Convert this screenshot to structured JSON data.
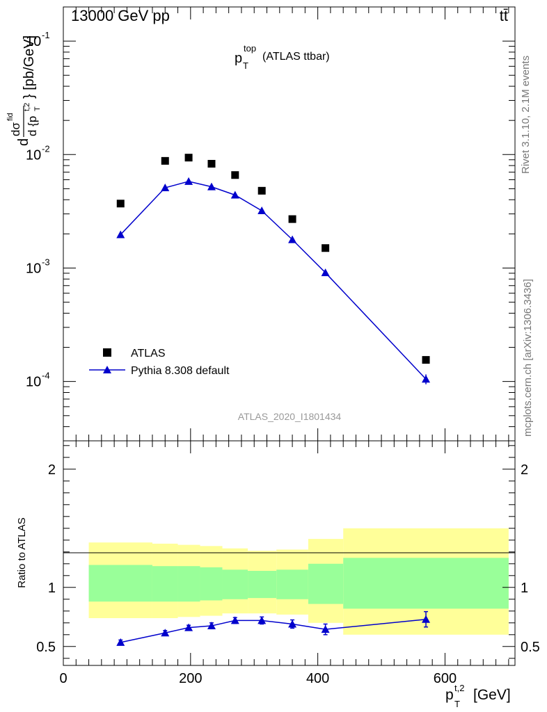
{
  "header": {
    "left": "13000 GeV pp",
    "right": "tt̄"
  },
  "side_text": {
    "rivet": "Rivet 3.1.10,  2.1M events",
    "mcplots": "mcplots.cern.ch [arXiv:1306.3436]"
  },
  "chart_data": [
    {
      "type": "scatter",
      "title": "p_T^top (ATLAS ttbar)",
      "analysis_id": "ATLAS_2020_I1801434",
      "ylabel": "d σ^fid / d {p_T^t,2} [pb/GeV]",
      "yscale": "log",
      "ylim": [
        3e-05,
        0.2
      ],
      "xlim": [
        0,
        710
      ],
      "legend_position": "lower-left",
      "y_ticks": [
        {
          "value": 0.1,
          "label": "10^-1"
        },
        {
          "value": 0.01,
          "label": "10^-2"
        },
        {
          "value": 0.001,
          "label": "10^-3"
        },
        {
          "value": 0.0001,
          "label": "10^-4"
        }
      ],
      "series": [
        {
          "name": "ATLAS",
          "marker": "square",
          "color": "#000000",
          "x": [
            90,
            160,
            197,
            233,
            270,
            312,
            360,
            412,
            570
          ],
          "y": [
            0.0037,
            0.0088,
            0.0094,
            0.0083,
            0.0066,
            0.0048,
            0.0027,
            0.0015,
            0.000155
          ]
        },
        {
          "name": "Pythia 8.308 default",
          "marker": "triangle",
          "color": "#0000cc",
          "x": [
            90,
            160,
            197,
            233,
            270,
            312,
            360,
            412,
            570
          ],
          "y": [
            0.00197,
            0.0051,
            0.0058,
            0.0052,
            0.0044,
            0.0032,
            0.00178,
            0.00091,
            0.000105
          ]
        }
      ]
    },
    {
      "type": "line",
      "ylabel": "Ratio to ATLAS",
      "xlabel": "p_T^t,2 [GeV]",
      "xlim": [
        0,
        710
      ],
      "ylim": [
        0.34,
        2.24
      ],
      "x_ticks": [
        0,
        200,
        400,
        600
      ],
      "y_ticks": [
        0.5,
        1,
        2
      ],
      "bands": [
        {
          "x0": 40,
          "x1": 140,
          "y_lo": 0.74,
          "y_hi": 1.38,
          "inner_lo": 0.88,
          "inner_hi": 1.19
        },
        {
          "x0": 140,
          "x1": 180,
          "y_lo": 0.74,
          "y_hi": 1.37,
          "inner_lo": 0.88,
          "inner_hi": 1.18
        },
        {
          "x0": 180,
          "x1": 215,
          "y_lo": 0.75,
          "y_hi": 1.36,
          "inner_lo": 0.88,
          "inner_hi": 1.18
        },
        {
          "x0": 215,
          "x1": 250,
          "y_lo": 0.76,
          "y_hi": 1.35,
          "inner_lo": 0.89,
          "inner_hi": 1.17
        },
        {
          "x0": 250,
          "x1": 290,
          "y_lo": 0.78,
          "y_hi": 1.33,
          "inner_lo": 0.9,
          "inner_hi": 1.15
        },
        {
          "x0": 290,
          "x1": 335,
          "y_lo": 0.78,
          "y_hi": 1.31,
          "inner_lo": 0.91,
          "inner_hi": 1.14
        },
        {
          "x0": 335,
          "x1": 385,
          "y_lo": 0.77,
          "y_hi": 1.32,
          "inner_lo": 0.9,
          "inner_hi": 1.15
        },
        {
          "x0": 385,
          "x1": 440,
          "y_lo": 0.7,
          "y_hi": 1.41,
          "inner_lo": 0.86,
          "inner_hi": 1.2
        },
        {
          "x0": 440,
          "x1": 700,
          "y_lo": 0.6,
          "y_hi": 1.5,
          "inner_lo": 0.82,
          "inner_hi": 1.25
        }
      ],
      "series": [
        {
          "name": "Pythia 8.308 default",
          "marker": "triangle",
          "color": "#0000cc",
          "x": [
            90,
            160,
            197,
            233,
            270,
            312,
            360,
            412,
            570
          ],
          "y": [
            0.535,
            0.615,
            0.66,
            0.675,
            0.72,
            0.72,
            0.69,
            0.645,
            0.73
          ],
          "err": [
            0.02,
            0.02,
            0.02,
            0.025,
            0.025,
            0.03,
            0.035,
            0.045,
            0.065
          ]
        }
      ]
    }
  ]
}
